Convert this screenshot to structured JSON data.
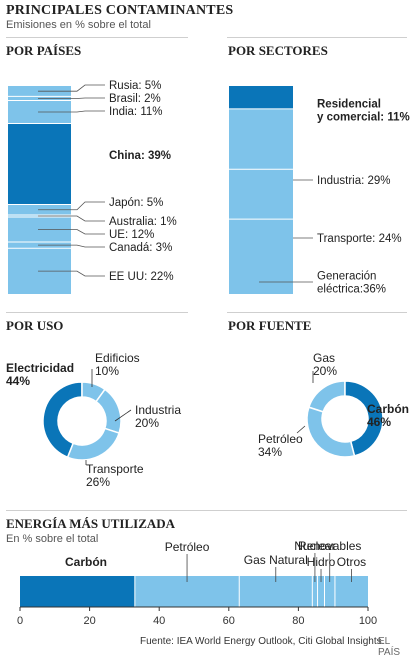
{
  "header": {
    "title": "PRINCIPALES CONTAMINANTES",
    "subtitle": "Emisiones en % sobre el total"
  },
  "sections": {
    "paises": "POR PAÍSES",
    "sectores": "POR SECTORES",
    "uso": "POR USO",
    "fuente": "POR FUENTE",
    "energia": "ENERGÍA MÁS UTILIZADA",
    "energia_subtitle": "En % sobre el total"
  },
  "footer": {
    "source": "Fuente: IEA World Energy Outlook, Citi Global Insights.",
    "brand": "EL PAÍS"
  },
  "colors": {
    "dark": "#0a75b8",
    "light": "#7ec3ea",
    "divider": "#ffffff",
    "text": "#222222"
  },
  "chart_data": [
    {
      "id": "paises",
      "type": "bar",
      "stacked": true,
      "categories": [
        "Rusia",
        "Brasil",
        "India",
        "China",
        "Japón",
        "Australia",
        "UE",
        "Canadá",
        "EE UU"
      ],
      "values": [
        5,
        2,
        11,
        39,
        5,
        1,
        12,
        3,
        22
      ],
      "labels": [
        "Rusia: 5%",
        "Brasil: 2%",
        "India: 11%",
        "China: 39%",
        "Japón: 5%",
        "Australia: 1%",
        "UE: 12%",
        "Canadá: 3%",
        "EE UU: 22%"
      ],
      "highlight": [
        "China"
      ]
    },
    {
      "id": "sectores",
      "type": "bar",
      "stacked": true,
      "categories": [
        "Residencial y comercial",
        "Industria",
        "Transporte",
        "Generación eléctrica"
      ],
      "values": [
        11,
        29,
        24,
        36
      ],
      "labels": [
        "Residencial y comercial: 11%",
        "Industria: 29%",
        "Transporte: 24%",
        "Generación eléctrica:36%"
      ],
      "highlight": [
        "Residencial y comercial"
      ]
    },
    {
      "id": "uso",
      "type": "pie",
      "donut": true,
      "categories": [
        "Electricidad",
        "Edificios",
        "Industria",
        "Transporte"
      ],
      "values": [
        44,
        10,
        20,
        26
      ],
      "label_names": [
        "Electricidad",
        "Edificios",
        "Industria",
        "Transporte"
      ],
      "label_values": [
        "44%",
        "10%",
        "20%",
        "26%"
      ],
      "highlight": [
        "Electricidad"
      ]
    },
    {
      "id": "fuente",
      "type": "pie",
      "donut": true,
      "categories": [
        "Gas",
        "Carbón",
        "Petróleo"
      ],
      "values": [
        20,
        46,
        34
      ],
      "label_names": [
        "Gas",
        "Carbón",
        "Petróleo"
      ],
      "label_values": [
        "20%",
        "46%",
        "34%"
      ],
      "highlight": [
        "Carbón"
      ]
    },
    {
      "id": "energia",
      "type": "bar",
      "stacked": true,
      "orientation": "horizontal",
      "categories": [
        "Carbón",
        "Petróleo",
        "Gas Natural",
        "Nuclear",
        "Hidro",
        "Renovables",
        "Otros"
      ],
      "values": [
        33,
        30,
        21,
        1.5,
        2,
        3,
        9.5
      ],
      "highlight": [
        "Carbón"
      ],
      "xlim": [
        0,
        100
      ],
      "xticks": [
        0,
        20,
        40,
        60,
        80,
        100
      ],
      "xtick_labels": [
        "0",
        "20",
        "40",
        "60",
        "80",
        "100"
      ]
    }
  ]
}
